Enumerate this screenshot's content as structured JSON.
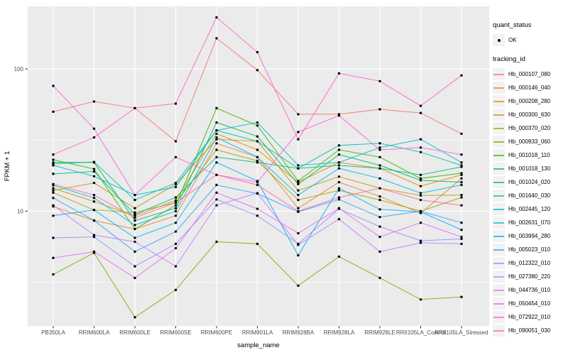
{
  "figure": {
    "x_axis": {
      "label": "sample_name"
    },
    "y_axis": {
      "label": "FPKM + 1"
    },
    "legend": {
      "quant_status_title": "quant_status",
      "quant_status_items": [
        {
          "label": "OK",
          "marker": "black-point"
        }
      ],
      "tracking_id_title": "tracking_id"
    }
  },
  "chart_data": {
    "type": "line",
    "title": "",
    "xlabel": "sample_name",
    "ylabel": "FPKM + 1",
    "y_scale": "log10",
    "y_ticks": [
      100,
      10
    ],
    "ylim": [
      1.5,
      300
    ],
    "grid": true,
    "legend_position": "right",
    "point_marker": "small black dot (quant_status = OK)",
    "categories": [
      "PB350LA",
      "RRIM600LA",
      "RRIM600LE",
      "RRIM600SE",
      "RRIM600PE",
      "RRIM901LA",
      "RRIM928BA",
      "RRIM928LA",
      "RRIM928LE",
      "RRII105LA_Control",
      "RRII105LA_Stressed"
    ],
    "series": [
      {
        "name": "Hb_000107_080",
        "color": "#F8766D",
        "values": [
          50,
          59,
          53,
          31,
          164,
          98,
          48,
          48,
          52,
          49,
          35
        ]
      },
      {
        "name": "Hb_000146_040",
        "color": "#EA8331",
        "values": [
          10.8,
          8.6,
          7.5,
          9.3,
          30,
          24,
          10.5,
          16,
          12.7,
          9.7,
          17
        ]
      },
      {
        "name": "Hb_000208_280",
        "color": "#D89000",
        "values": [
          14.5,
          11.7,
          9.3,
          11.9,
          35,
          27,
          16,
          22,
          20,
          15,
          18
        ]
      },
      {
        "name": "Hb_000300_630",
        "color": "#C09B00",
        "values": [
          14,
          15.8,
          10.5,
          15.5,
          32,
          31,
          14,
          17.5,
          14.5,
          12.9,
          13
        ]
      },
      {
        "name": "Hb_000370_020",
        "color": "#A3A500",
        "values": [
          13.5,
          10.2,
          9.8,
          11.5,
          27,
          22.6,
          12,
          14,
          12,
          10,
          12.5
        ]
      },
      {
        "name": "Hb_000933_060",
        "color": "#7CAE00",
        "values": [
          3.6,
          5.1,
          1.8,
          2.8,
          6.1,
          5.9,
          3.0,
          4.8,
          3.4,
          2.4,
          2.5
        ]
      },
      {
        "name": "Hb_001018_110",
        "color": "#39B600",
        "values": [
          23,
          19.8,
          7.5,
          11,
          53,
          40,
          16.3,
          27,
          24,
          17,
          18.5
        ]
      },
      {
        "name": "Hb_001018_130",
        "color": "#00BB4E",
        "values": [
          22,
          22,
          8.6,
          10.5,
          42,
          33.5,
          15.5,
          25,
          21,
          16.5,
          16
        ]
      },
      {
        "name": "Hb_001024_020",
        "color": "#00BF7D",
        "values": [
          18.3,
          19,
          9.5,
          12.5,
          24,
          22,
          20,
          21,
          20,
          18,
          20.5
        ]
      },
      {
        "name": "Hb_001640_030",
        "color": "#00C1A3",
        "values": [
          21.5,
          22.2,
          12,
          15.8,
          37,
          31,
          20,
          29,
          30,
          26,
          21
        ]
      },
      {
        "name": "Hb_002445_120",
        "color": "#00BFC4",
        "values": [
          21,
          17.6,
          13,
          14.8,
          37,
          42,
          21,
          22,
          28,
          32,
          22
        ]
      },
      {
        "name": "Hb_002631_070",
        "color": "#00BAE0",
        "values": [
          15.2,
          12.4,
          8,
          10,
          33,
          24,
          13,
          20,
          17,
          13.4,
          15.3
        ]
      },
      {
        "name": "Hb_003994_280",
        "color": "#00B0F6",
        "values": [
          9.3,
          10.2,
          6.5,
          8.3,
          22,
          16.3,
          4.9,
          14.5,
          10.3,
          9.9,
          7.4
        ]
      },
      {
        "name": "Hb_005023_010",
        "color": "#35A2FF",
        "values": [
          12.4,
          8.6,
          5.2,
          7.2,
          15.3,
          13.3,
          9.9,
          12.1,
          9.1,
          10,
          8.3
        ]
      },
      {
        "name": "Hb_012322_010",
        "color": "#9590FF",
        "values": [
          6.5,
          6.6,
          4.1,
          5.9,
          12.1,
          9.3,
          5.9,
          10.4,
          7.8,
          6.2,
          6.4
        ]
      },
      {
        "name": "Hb_027380_220",
        "color": "#C77CFF",
        "values": [
          11,
          6.8,
          6.1,
          4.1,
          11,
          13.4,
          5.8,
          8.8,
          5.2,
          6.0,
          5.9
        ]
      },
      {
        "name": "Hb_044736_010",
        "color": "#E76BF3",
        "values": [
          4.7,
          5.2,
          3.4,
          5.5,
          13.5,
          10.4,
          7.0,
          10.5,
          6.6,
          8.3,
          6.6
        ]
      },
      {
        "name": "Hb_050454_010",
        "color": "#FA62DB",
        "values": [
          76,
          38,
          13,
          24,
          18,
          16,
          36,
          47,
          27,
          28,
          25
        ]
      },
      {
        "name": "Hb_072922_010",
        "color": "#FF61CC",
        "values": [
          25,
          33,
          53,
          57,
          230,
          131,
          32,
          93,
          82,
          55,
          90
        ]
      },
      {
        "name": "Hb_090051_030",
        "color": "#FF67A4",
        "values": [
          15.5,
          13,
          9.0,
          11.5,
          18,
          15.3,
          10,
          12.5,
          14.5,
          12,
          11
        ]
      }
    ]
  }
}
